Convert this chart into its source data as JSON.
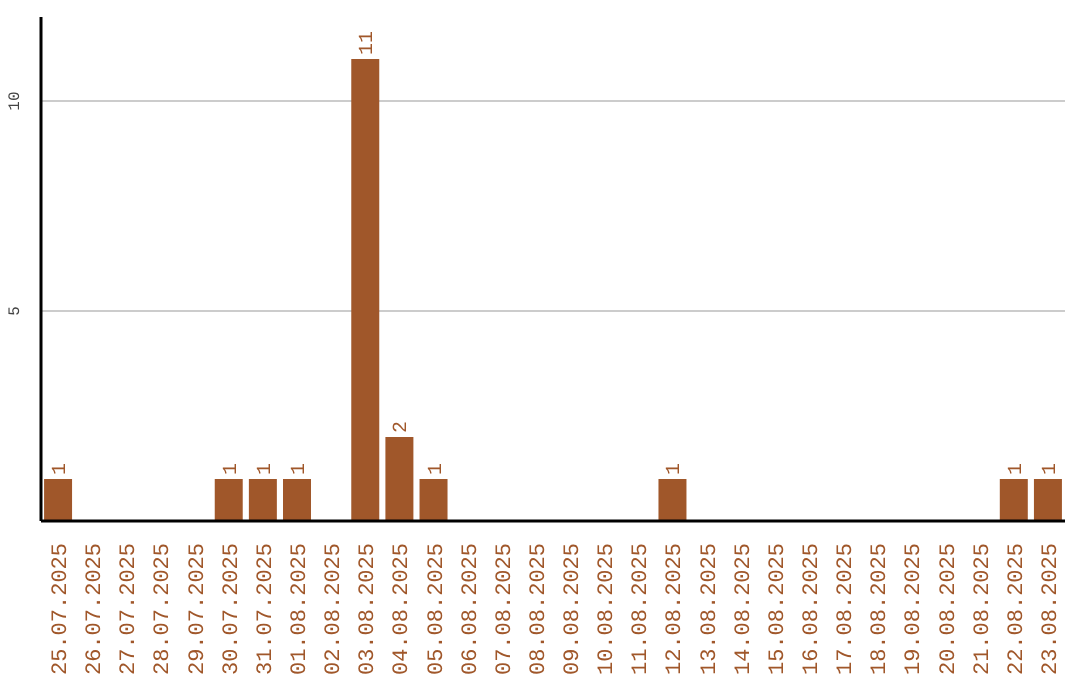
{
  "chart_data": {
    "type": "bar",
    "categories": [
      "25.07.2025",
      "26.07.2025",
      "27.07.2025",
      "28.07.2025",
      "29.07.2025",
      "30.07.2025",
      "31.07.2025",
      "01.08.2025",
      "02.08.2025",
      "03.08.2025",
      "04.08.2025",
      "05.08.2025",
      "06.08.2025",
      "07.08.2025",
      "08.08.2025",
      "09.08.2025",
      "10.08.2025",
      "11.08.2025",
      "12.08.2025",
      "13.08.2025",
      "14.08.2025",
      "15.08.2025",
      "16.08.2025",
      "17.08.2025",
      "18.08.2025",
      "19.08.2025",
      "20.08.2025",
      "21.08.2025",
      "22.08.2025",
      "23.08.2025"
    ],
    "values": [
      1,
      0,
      0,
      0,
      0,
      1,
      1,
      1,
      0,
      11,
      2,
      1,
      0,
      0,
      0,
      0,
      0,
      0,
      1,
      0,
      0,
      0,
      0,
      0,
      0,
      0,
      0,
      0,
      1,
      1
    ],
    "value_labels": [
      "1",
      null,
      null,
      null,
      null,
      "1",
      "1",
      "1",
      null,
      "11",
      "2",
      "1",
      null,
      null,
      null,
      null,
      null,
      null,
      "1",
      null,
      null,
      null,
      null,
      null,
      null,
      null,
      null,
      null,
      "1",
      "1"
    ],
    "color": "#a0572a",
    "ylim": [
      0,
      12
    ],
    "yticks": [
      5,
      10
    ],
    "grid": "y"
  }
}
